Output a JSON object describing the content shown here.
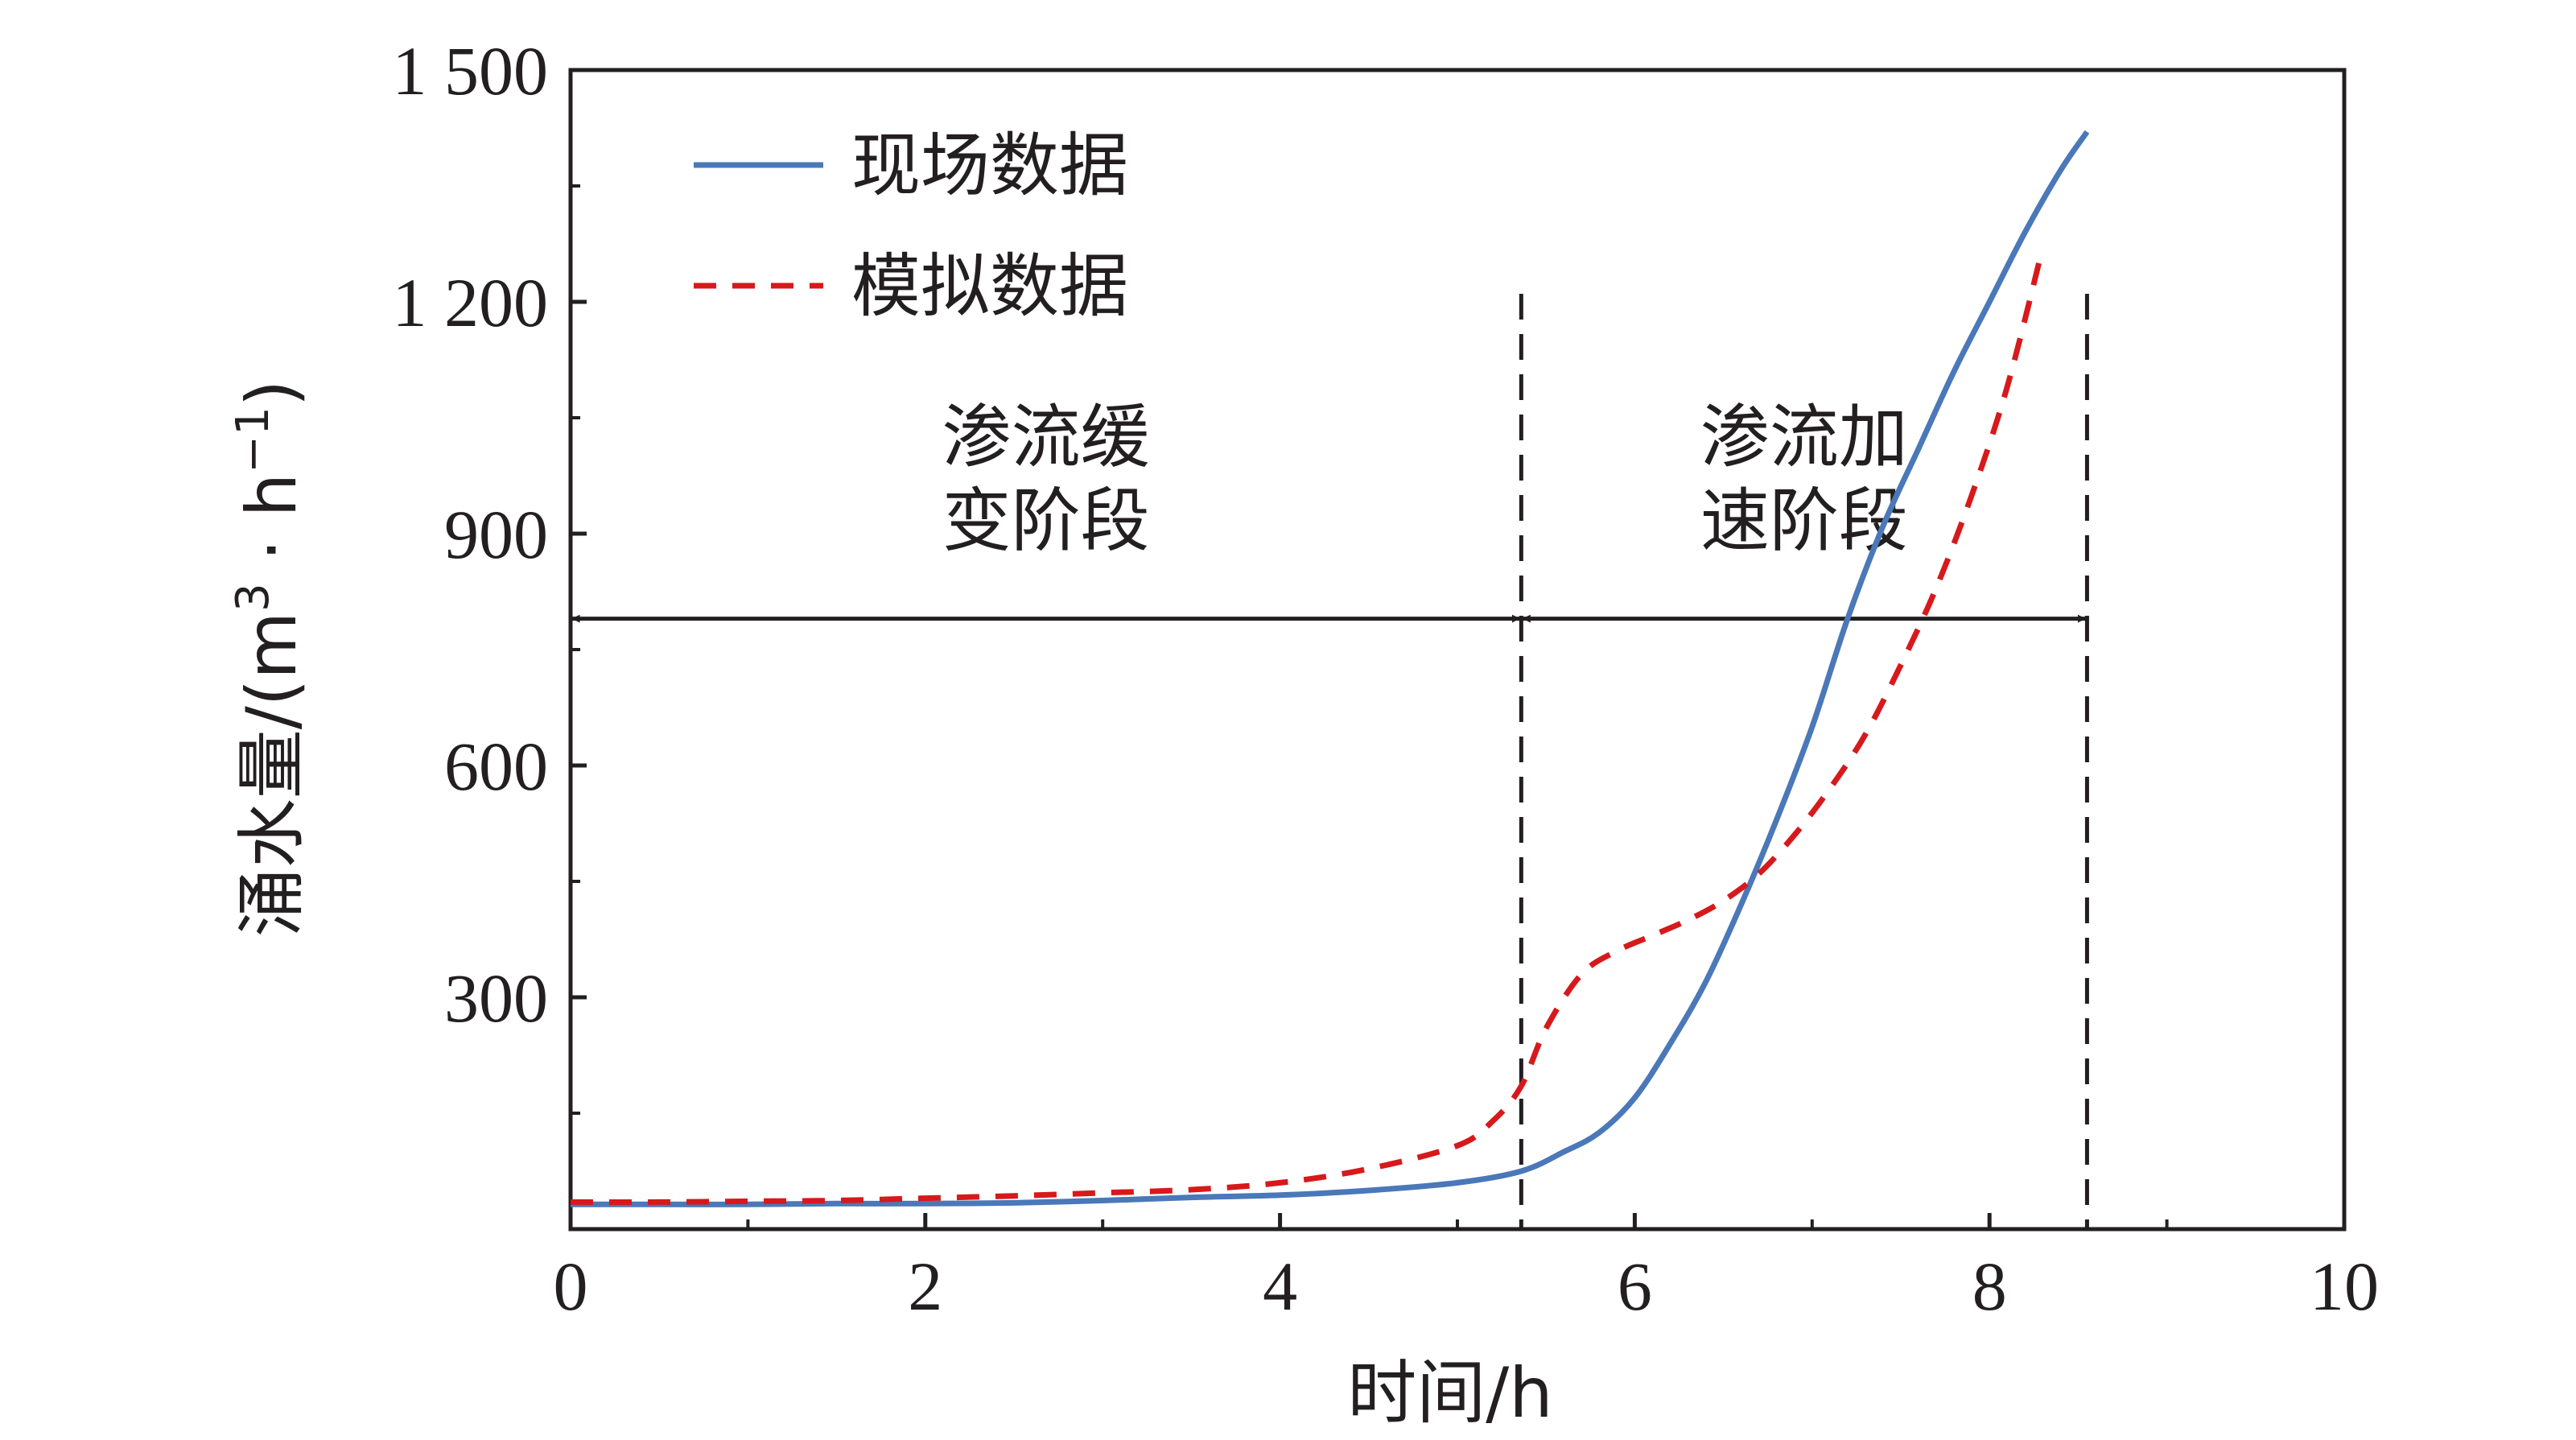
{
  "chart_data": {
    "type": "line",
    "title": "",
    "xlabel": "时间/h",
    "ylabel": {
      "text": "涌水量/(m",
      "sup1": "3",
      "mid": " · h",
      "sup2": "−1",
      "end": ")"
    },
    "xlim": [
      0,
      10
    ],
    "ylim": [
      0,
      1500
    ],
    "xticks": [
      0,
      2,
      4,
      6,
      8,
      10
    ],
    "xtick_labels": [
      "0",
      "2",
      "4",
      "6",
      "8",
      "10"
    ],
    "yticks": [
      300,
      600,
      900,
      1200,
      1500
    ],
    "ytick_labels": [
      "300",
      "600",
      "900",
      "1 200",
      "1 500"
    ],
    "grid": false,
    "legend_position": "top-left",
    "series": [
      {
        "name": "现场数据",
        "color": "#4a78b8",
        "style": "solid",
        "x": [
          0,
          0.5,
          1,
          1.5,
          2,
          2.5,
          3,
          3.5,
          4,
          4.5,
          5,
          5.36,
          5.6,
          5.8,
          6.0,
          6.2,
          6.4,
          6.6,
          6.8,
          7.0,
          7.2,
          7.4,
          7.6,
          7.8,
          8.0,
          8.2,
          8.4,
          8.55
        ],
        "y": [
          32,
          32,
          32,
          33,
          33,
          34,
          37,
          41,
          44,
          50,
          60,
          75,
          100,
          125,
          170,
          240,
          320,
          420,
          530,
          650,
          790,
          910,
          1010,
          1110,
          1200,
          1290,
          1370,
          1420
        ]
      },
      {
        "name": "模拟数据",
        "color": "#d7191c",
        "style": "dashed",
        "x": [
          0,
          0.5,
          1,
          1.5,
          2,
          2.5,
          3,
          3.5,
          4,
          4.5,
          5,
          5.2,
          5.36,
          5.5,
          5.7,
          5.9,
          6.1,
          6.3,
          6.5,
          6.7,
          6.9,
          7.1,
          7.3,
          7.5,
          7.7,
          7.9,
          8.1,
          8.3
        ],
        "y": [
          35,
          35,
          36,
          37,
          40,
          43,
          47,
          51,
          60,
          78,
          108,
          140,
          185,
          260,
          330,
          360,
          380,
          400,
          425,
          460,
          510,
          570,
          640,
          730,
          830,
          950,
          1090,
          1270
        ]
      }
    ],
    "vertical_lines": [
      5.36,
      8.55
    ],
    "arrow_y": 790,
    "stages": [
      {
        "lines": [
          "渗流缓",
          "变阶段"
        ],
        "x_from": 0,
        "x_to": 5.36
      },
      {
        "lines": [
          "渗流加",
          "速阶段"
        ],
        "x_from": 5.36,
        "x_to": 8.55
      }
    ]
  }
}
